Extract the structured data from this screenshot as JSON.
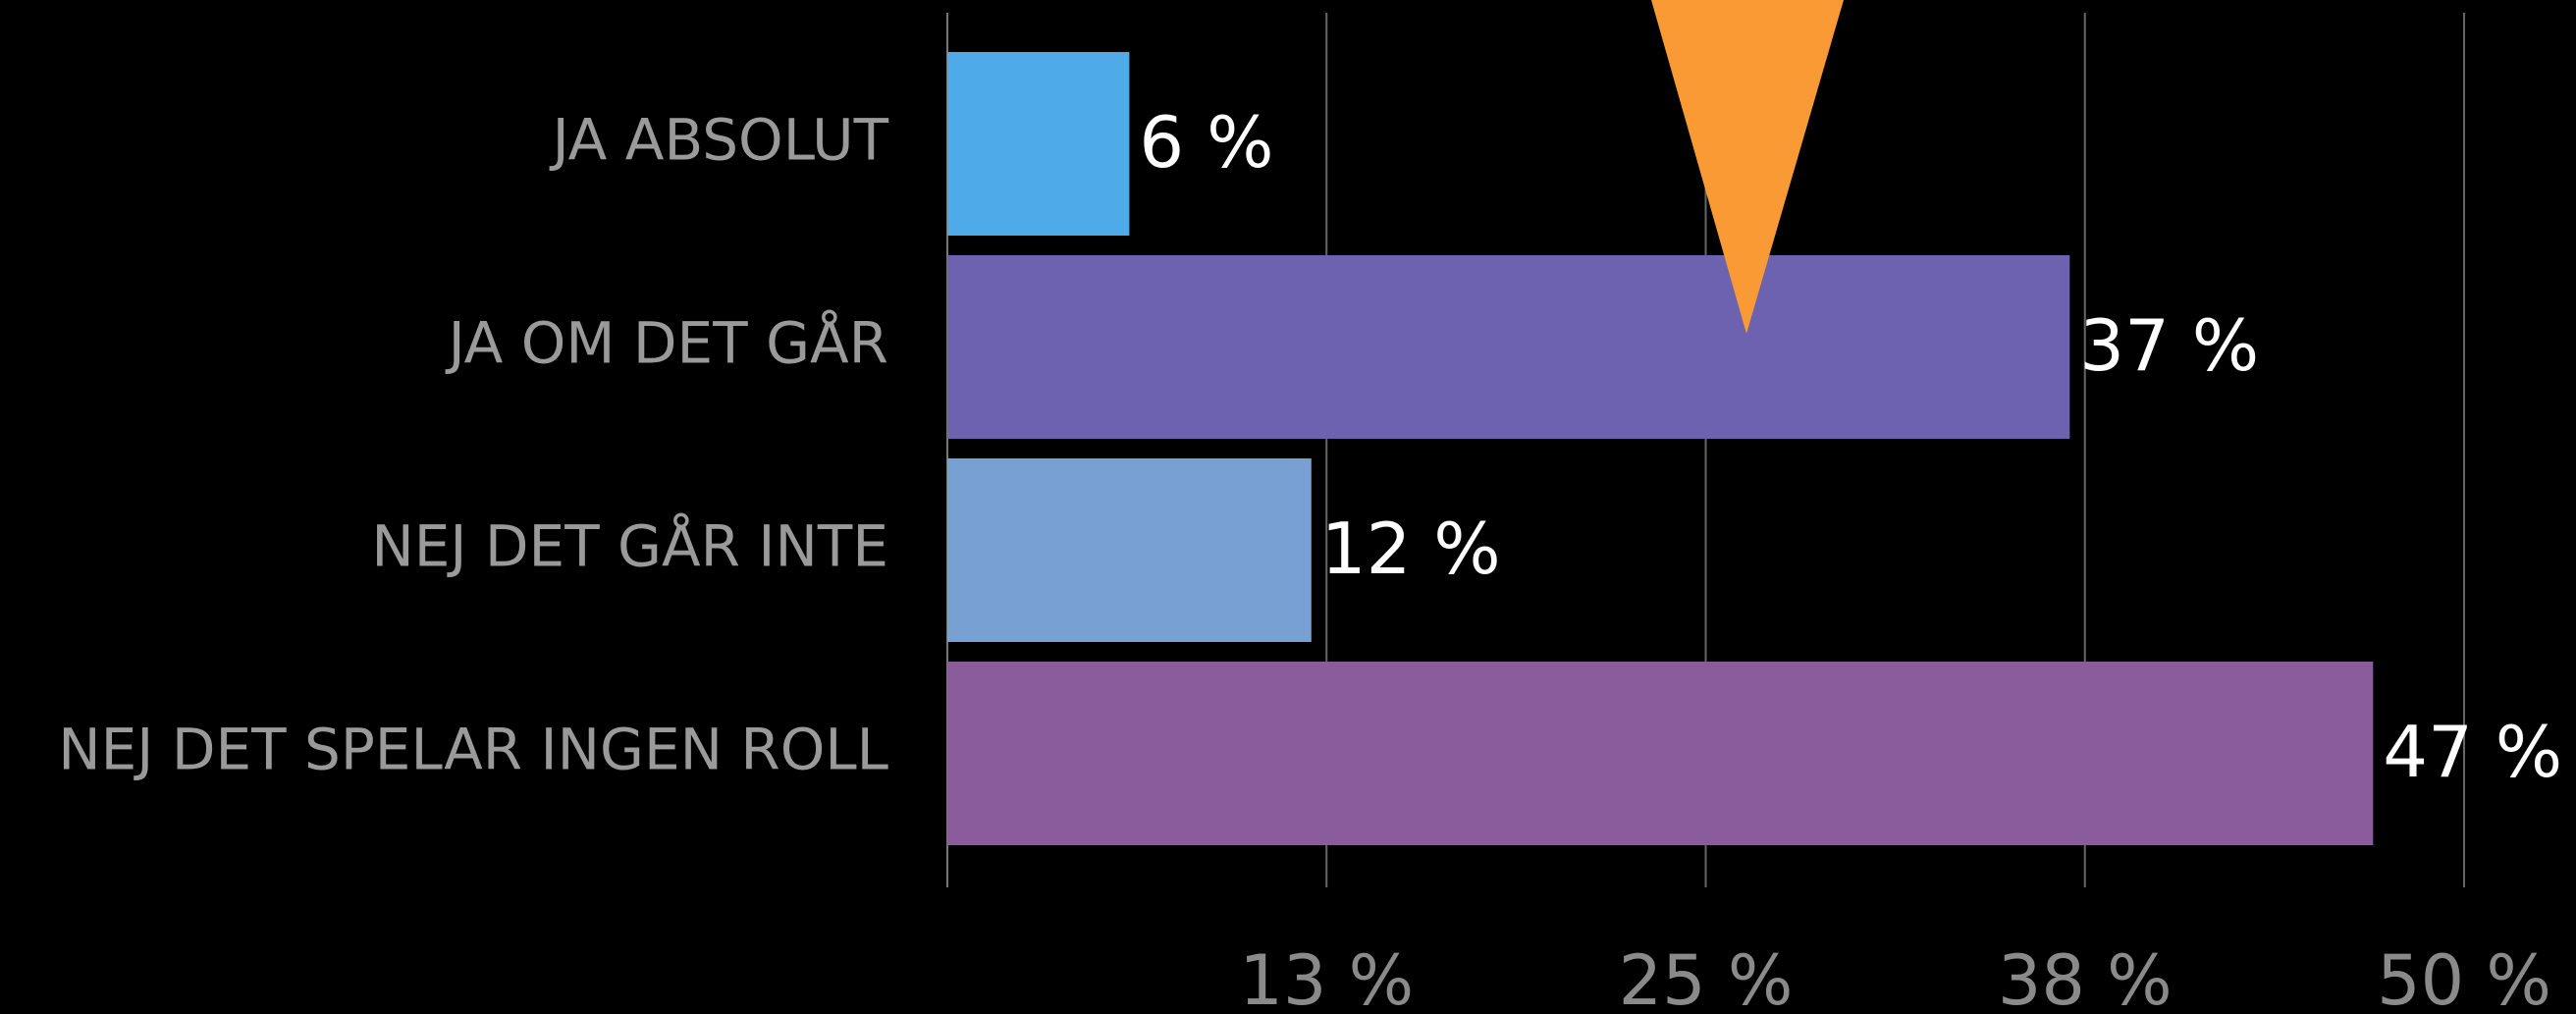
{
  "chart_data": {
    "type": "bar",
    "orientation": "horizontal",
    "categories": [
      "JA ABSOLUT",
      "JA OM DET GÅR",
      "NEJ DET GÅR INTE",
      "NEJ DET SPELAR INGEN ROLL"
    ],
    "values": [
      6,
      37,
      12,
      47
    ],
    "value_labels": [
      "6 %",
      "37 %",
      "12 %",
      "47 %"
    ],
    "colors": [
      "#4eaae8",
      "#6c62b0",
      "#78a0d2",
      "#8a5c9c"
    ],
    "xlim": [
      0,
      50
    ],
    "xticks": [
      {
        "value": 12.5,
        "label": "13 %"
      },
      {
        "value": 25,
        "label": "25 %"
      },
      {
        "value": 37.5,
        "label": "38 %"
      },
      {
        "value": 50,
        "label": "50 %"
      }
    ],
    "grid": true
  }
}
